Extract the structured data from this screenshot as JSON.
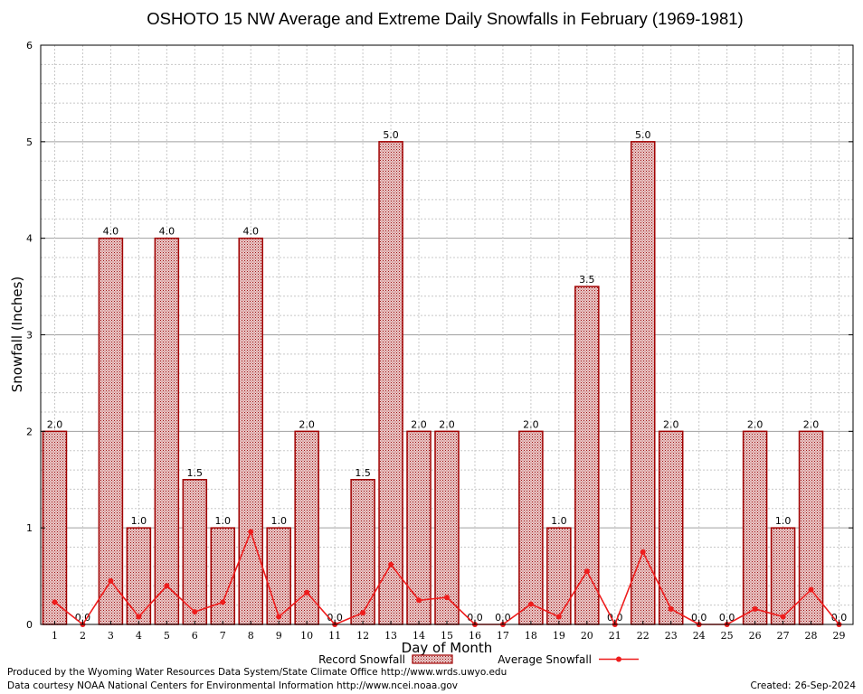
{
  "chart_data": {
    "type": "bar",
    "title": "OSHOTO 15 NW Average and Extreme Daily Snowfalls in February (1969-1981)",
    "xlabel": "Day of Month",
    "ylabel": "Snowfall (Inches)",
    "ylim": [
      0,
      6
    ],
    "yticks": [
      "0",
      "1",
      "2",
      "3",
      "4",
      "5",
      "6"
    ],
    "grid": true,
    "categories": [
      "1",
      "2",
      "3",
      "4",
      "5",
      "6",
      "7",
      "8",
      "9",
      "10",
      "11",
      "12",
      "13",
      "14",
      "15",
      "16",
      "17",
      "18",
      "19",
      "20",
      "21",
      "22",
      "23",
      "24",
      "25",
      "26",
      "27",
      "28",
      "29"
    ],
    "series": [
      {
        "name": "Record Snowfall",
        "kind": "bar",
        "values": [
          2.0,
          0.0,
          4.0,
          1.0,
          4.0,
          1.5,
          1.0,
          4.0,
          1.0,
          2.0,
          0.0,
          1.5,
          5.0,
          2.0,
          2.0,
          0.0,
          0.0,
          2.0,
          1.0,
          3.5,
          0.0,
          5.0,
          2.0,
          0.0,
          0.0,
          2.0,
          1.0,
          2.0,
          0.0
        ],
        "labels": [
          "2.0",
          "0.0",
          "4.0",
          "1.0",
          "4.0",
          "1.5",
          "1.0",
          "4.0",
          "1.0",
          "2.0",
          "0.0",
          "1.5",
          "5.0",
          "2.0",
          "2.0",
          "0.0",
          "0.0",
          "2.0",
          "1.0",
          "3.5",
          "0.0",
          "5.0",
          "2.0",
          "0.0",
          "0.0",
          "2.0",
          "1.0",
          "2.0",
          "0.0"
        ]
      },
      {
        "name": "Average Snowfall",
        "kind": "line",
        "values": [
          0.23,
          0.0,
          0.45,
          0.08,
          0.4,
          0.13,
          0.23,
          0.96,
          0.08,
          0.33,
          0.0,
          0.12,
          0.62,
          0.25,
          0.28,
          0.0,
          0.0,
          0.21,
          0.08,
          0.55,
          0.0,
          0.75,
          0.16,
          0.0,
          0.0,
          0.16,
          0.08,
          0.36,
          0.0
        ]
      }
    ],
    "legend_position": "bottom-center",
    "colors": {
      "bar_border": "#a00000",
      "bar_fill": "#e8c8c8",
      "line": "#ee1c1c",
      "grid_major": "#a0a0a0",
      "grid_minor": "#c8c8c8"
    }
  },
  "footer": {
    "producer": "Produced by the Wyoming Water Resources Data System/State Climate Office http://www.wrds.uwyo.edu",
    "courtesy": "Data courtesy NOAA National Centers for Environmental Information http://www.ncei.noaa.gov",
    "created_label": "Created:",
    "created_date": "26-Sep-2024"
  }
}
